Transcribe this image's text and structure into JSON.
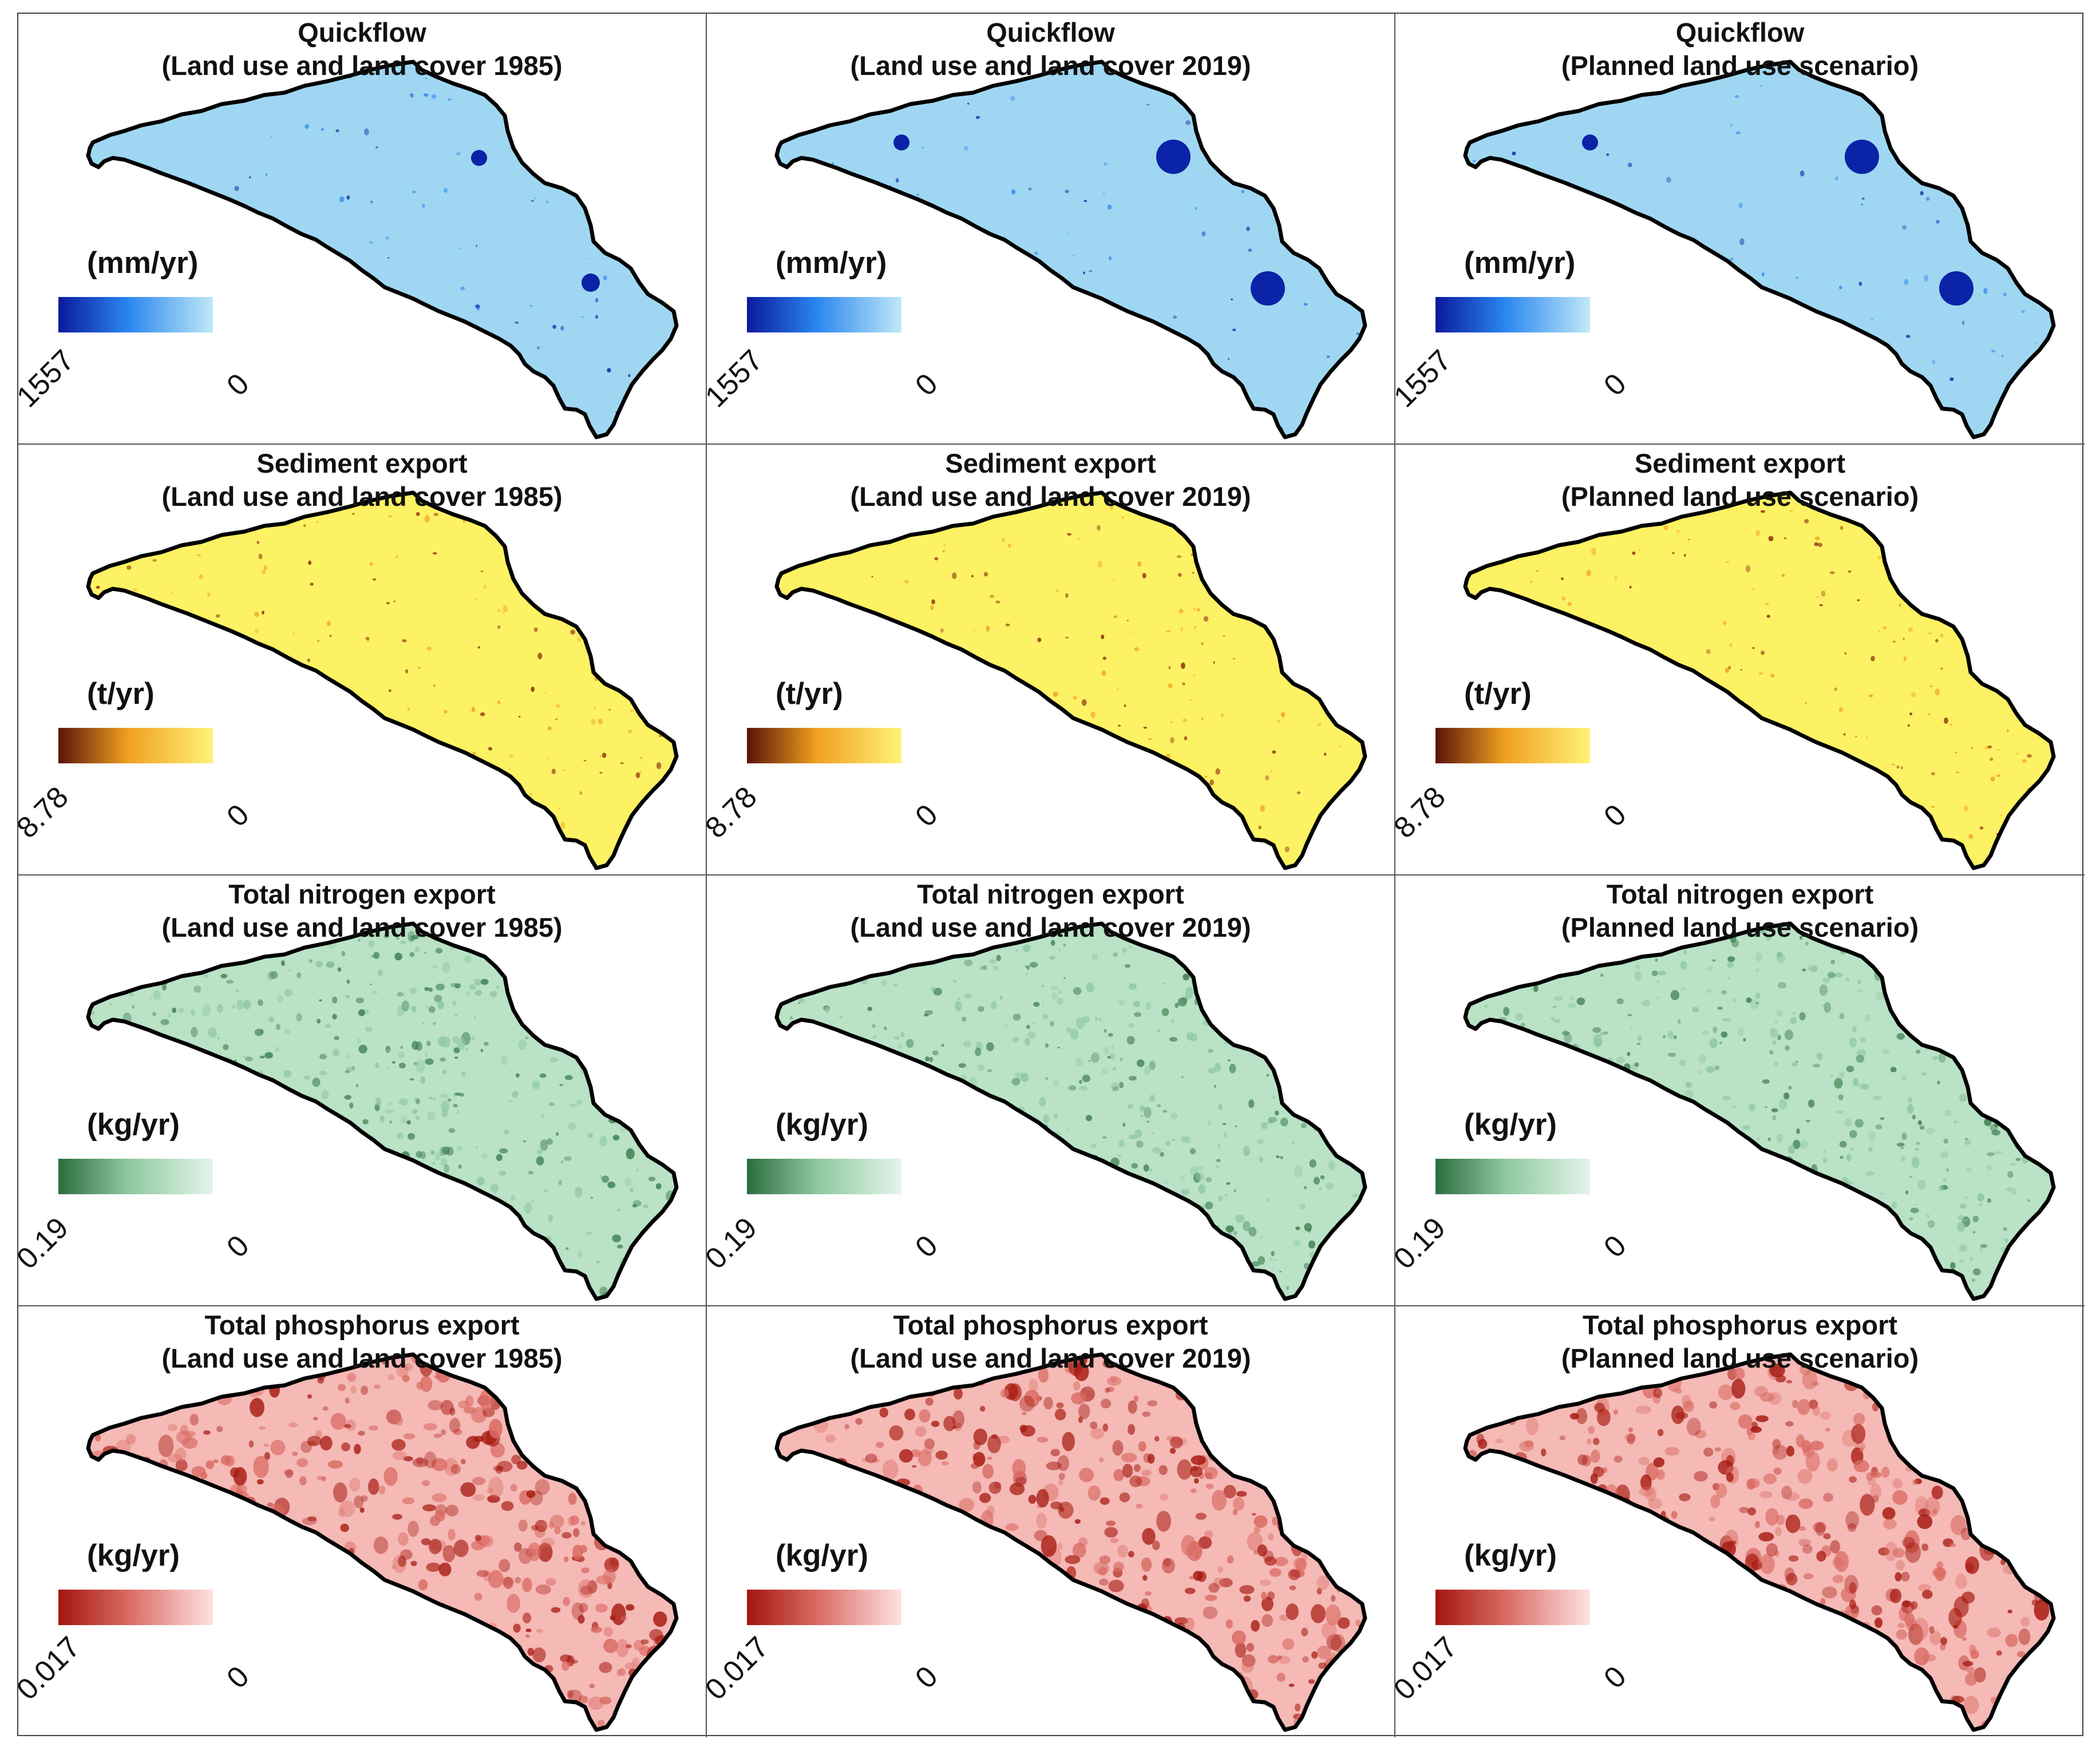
{
  "figure": {
    "rows": [
      {
        "variable": "Quickflow",
        "unit": "(mm/yr)",
        "legend_max": "1557",
        "legend_min": "0",
        "colors": {
          "high": "#0a1a9e",
          "mid": "#2a86f0",
          "low": "#bfe9f7",
          "base": "#9fd7f2",
          "spot": "#0b23a6"
        }
      },
      {
        "variable": "Sediment export",
        "unit": "(t/yr)",
        "legend_max": "8.78",
        "legend_min": "0",
        "colors": {
          "high": "#5a1408",
          "mid": "#f0a020",
          "low": "#fff27a",
          "base": "#fdf263",
          "spot": "#8b2a0c"
        }
      },
      {
        "variable": "Total nitrogen export",
        "unit": "(kg/yr)",
        "legend_max": "0.19",
        "legend_min": "0",
        "colors": {
          "high": "#2c6e3f",
          "mid": "#8ec79f",
          "low": "#e3f5ea",
          "base": "#b9e2c6",
          "spot": "#3e7e4f"
        }
      },
      {
        "variable": "Total phosphorus export",
        "unit": "(kg/yr)",
        "legend_max": "0.017",
        "legend_min": "0",
        "colors": {
          "high": "#a3160d",
          "mid": "#d96a62",
          "low": "#fde2e2",
          "base": "#f5b9b6",
          "spot": "#a61a10"
        }
      }
    ],
    "columns": [
      {
        "scenario": "(Land use and land cover 1985)"
      },
      {
        "scenario": "(Land use and land cover 2019)"
      },
      {
        "scenario": "(Planned land use scenario)"
      }
    ],
    "outline_color": "#000000"
  }
}
